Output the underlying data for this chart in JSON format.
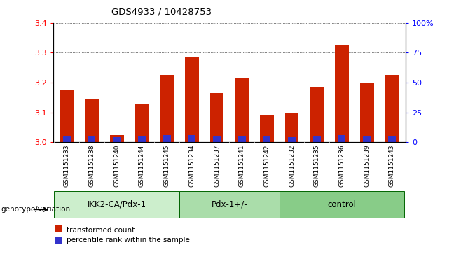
{
  "title": "GDS4933 / 10428753",
  "samples": [
    "GSM1151233",
    "GSM1151238",
    "GSM1151240",
    "GSM1151244",
    "GSM1151245",
    "GSM1151234",
    "GSM1151237",
    "GSM1151241",
    "GSM1151242",
    "GSM1151232",
    "GSM1151235",
    "GSM1151236",
    "GSM1151239",
    "GSM1151243"
  ],
  "groups": [
    {
      "label": "IKK2-CA/Pdx-1",
      "count": 5
    },
    {
      "label": "Pdx-1+/-",
      "count": 4
    },
    {
      "label": "control",
      "count": 5
    }
  ],
  "group_colors": [
    "#cceecc",
    "#aaddaa",
    "#88cc88"
  ],
  "red_values": [
    3.175,
    3.145,
    3.025,
    3.13,
    3.225,
    3.285,
    3.165,
    3.215,
    3.09,
    3.1,
    3.185,
    3.325,
    3.2,
    3.225
  ],
  "blue_fracs": [
    5,
    5,
    4,
    5,
    6,
    6,
    5,
    5,
    5,
    4,
    5,
    6,
    5,
    5
  ],
  "ylim_left": [
    3.0,
    3.4
  ],
  "ylim_right": [
    0,
    100
  ],
  "yticks_left": [
    3.0,
    3.1,
    3.2,
    3.3,
    3.4
  ],
  "yticks_right": [
    0,
    25,
    50,
    75,
    100
  ],
  "yticklabels_right": [
    "0",
    "25",
    "50",
    "75",
    "100%"
  ],
  "bar_width": 0.55,
  "bar_color_red": "#cc2200",
  "bar_color_blue": "#3333cc",
  "xlabel_area": "genotype/variation",
  "legend_red": "transformed count",
  "legend_blue": "percentile rank within the sample",
  "tick_bg_color": "#cccccc",
  "sample_label_fontsize": 6.5,
  "group_label_fontsize": 8.5
}
